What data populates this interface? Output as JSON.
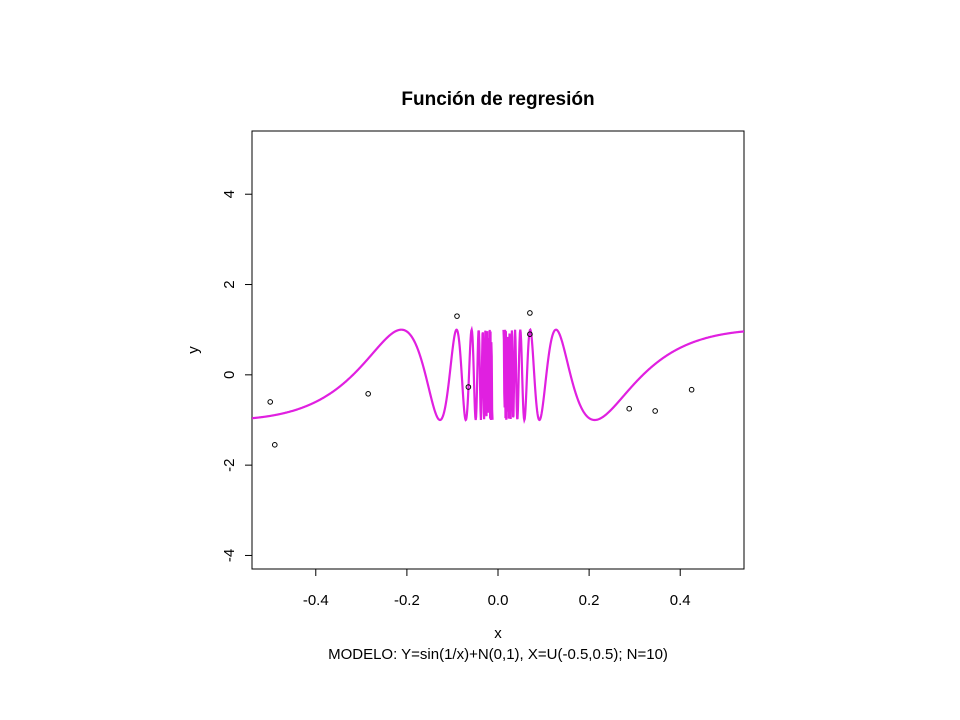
{
  "chart_data": {
    "type": "scatter",
    "title": "Función de regresión",
    "xlabel": "x",
    "ylabel": "y",
    "subtitle": "MODELO: Y=sin(1/x)+N(0,1), X=U(-0.5,0.5);  N=10)",
    "xlim": [
      -0.54,
      0.54
    ],
    "ylim": [
      -4.3,
      5.4
    ],
    "x_ticks": [
      -0.4,
      -0.2,
      0.0,
      0.2,
      0.4
    ],
    "x_tick_labels": [
      "-0.4",
      "-0.2",
      "0.0",
      "0.2",
      "0.4"
    ],
    "y_ticks": [
      -4,
      -2,
      0,
      2,
      4
    ],
    "y_tick_labels": [
      "-4",
      "-2",
      "0",
      "2",
      "4"
    ],
    "grid": false,
    "colors": {
      "curve": "#e020e0",
      "points": "#000000"
    },
    "series": [
      {
        "kind": "points",
        "points": [
          {
            "x": -0.5,
            "y": -0.6
          },
          {
            "x": -0.49,
            "y": -1.55
          },
          {
            "x": -0.285,
            "y": -0.42
          },
          {
            "x": -0.09,
            "y": 1.3
          },
          {
            "x": -0.065,
            "y": -0.27
          },
          {
            "x": 0.07,
            "y": 1.37
          },
          {
            "x": 0.07,
            "y": 0.9
          },
          {
            "x": 0.288,
            "y": -0.75
          },
          {
            "x": 0.345,
            "y": -0.8
          },
          {
            "x": 0.425,
            "y": -0.33
          }
        ]
      },
      {
        "kind": "curve",
        "function": "sin(1/x)"
      }
    ]
  }
}
